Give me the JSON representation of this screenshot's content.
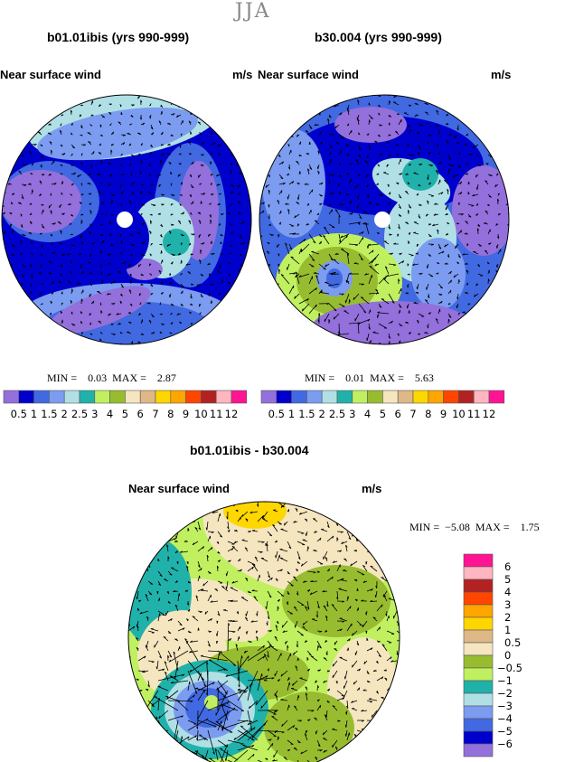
{
  "title": "JJA",
  "panels": [
    {
      "title": "b01.01ibis (yrs 990-999)",
      "left_label": "Near surface wind",
      "right_label": "m/s",
      "min_label": "MIN =",
      "min": "0.03",
      "max_label": "MAX =",
      "max": "2.87"
    },
    {
      "title": "b30.004 (yrs 990-999)",
      "left_label": "Near surface wind",
      "right_label": "m/s",
      "min_label": "MIN =",
      "min": "0.01",
      "max_label": "MAX =",
      "max": "5.63"
    },
    {
      "title": "b01.01ibis - b30.004",
      "left_label": "Near surface wind",
      "right_label": "m/s",
      "min_label": "MIN =",
      "min": "−5.08",
      "max_label": "MAX =",
      "max": "1.75"
    }
  ],
  "colorbar_abs": {
    "labels": [
      "0.5",
      "1",
      "1.5",
      "2",
      "2.5",
      "3",
      "4",
      "5",
      "6",
      "7",
      "8",
      "9",
      "10",
      "11",
      "12"
    ],
    "colors": [
      "#9370db",
      "#0000cd",
      "#4169e1",
      "#7b9cf0",
      "#b0e0e6",
      "#20b2aa",
      "#c0f060",
      "#98bc30",
      "#f5e6c0",
      "#deb887",
      "#ffd700",
      "#ffa500",
      "#ff4500",
      "#b22222",
      "#ffb6c1",
      "#ff1493"
    ]
  },
  "colorbar_diff": {
    "labels": [
      "6",
      "5",
      "4",
      "3",
      "2",
      "1",
      "0.5",
      "0",
      "−0.5",
      "−1",
      "−2",
      "−3",
      "−4",
      "−5",
      "−6"
    ],
    "colors": [
      "#ff1493",
      "#ffb6c1",
      "#b22222",
      "#ff4500",
      "#ffa500",
      "#ffd700",
      "#deb887",
      "#f5e6c0",
      "#98bc30",
      "#c0f060",
      "#20b2aa",
      "#b0e0e6",
      "#7b9cf0",
      "#4169e1",
      "#0000cd",
      "#9370db"
    ]
  }
}
